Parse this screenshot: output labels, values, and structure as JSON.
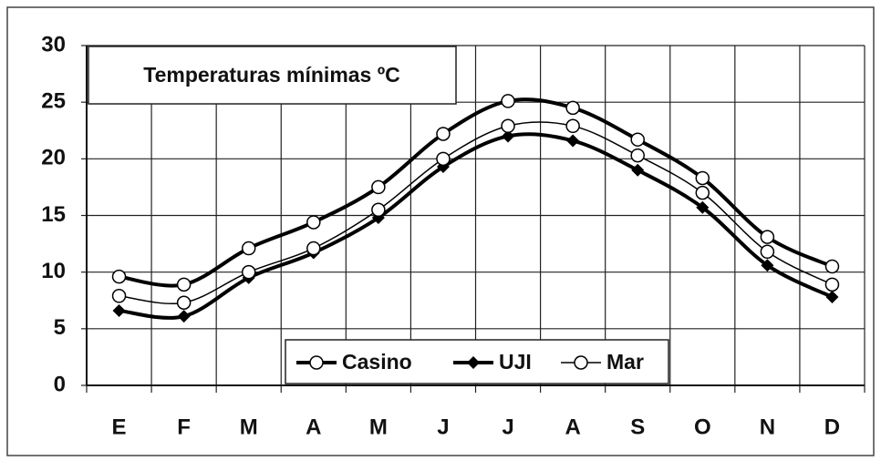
{
  "chart_data": {
    "type": "line",
    "title": "Temperaturas mínimas ºC",
    "categories": [
      "E",
      "F",
      "M",
      "A",
      "M",
      "J",
      "J",
      "A",
      "S",
      "O",
      "N",
      "D"
    ],
    "series": [
      {
        "name": "Casino",
        "color": "#000000",
        "marker": "circle",
        "line_width": 4,
        "values": [
          9.6,
          8.9,
          12.1,
          14.4,
          17.5,
          22.2,
          25.1,
          24.5,
          21.7,
          18.3,
          13.1,
          10.5
        ]
      },
      {
        "name": "UJI",
        "color": "#000000",
        "marker": "diamond",
        "line_width": 4,
        "values": [
          6.6,
          6.1,
          9.5,
          11.7,
          14.8,
          19.3,
          22.0,
          21.6,
          19.0,
          15.7,
          10.6,
          7.8
        ]
      },
      {
        "name": "Mar",
        "color": "#000000",
        "marker": "circle",
        "line_width": 1.5,
        "values": [
          7.9,
          7.3,
          10.0,
          12.1,
          15.5,
          20.0,
          22.9,
          22.9,
          20.3,
          17.0,
          11.8,
          8.9
        ]
      }
    ],
    "ylim": [
      0,
      30
    ],
    "yticks": [
      0,
      5,
      10,
      15,
      20,
      25,
      30
    ],
    "grid": true
  }
}
